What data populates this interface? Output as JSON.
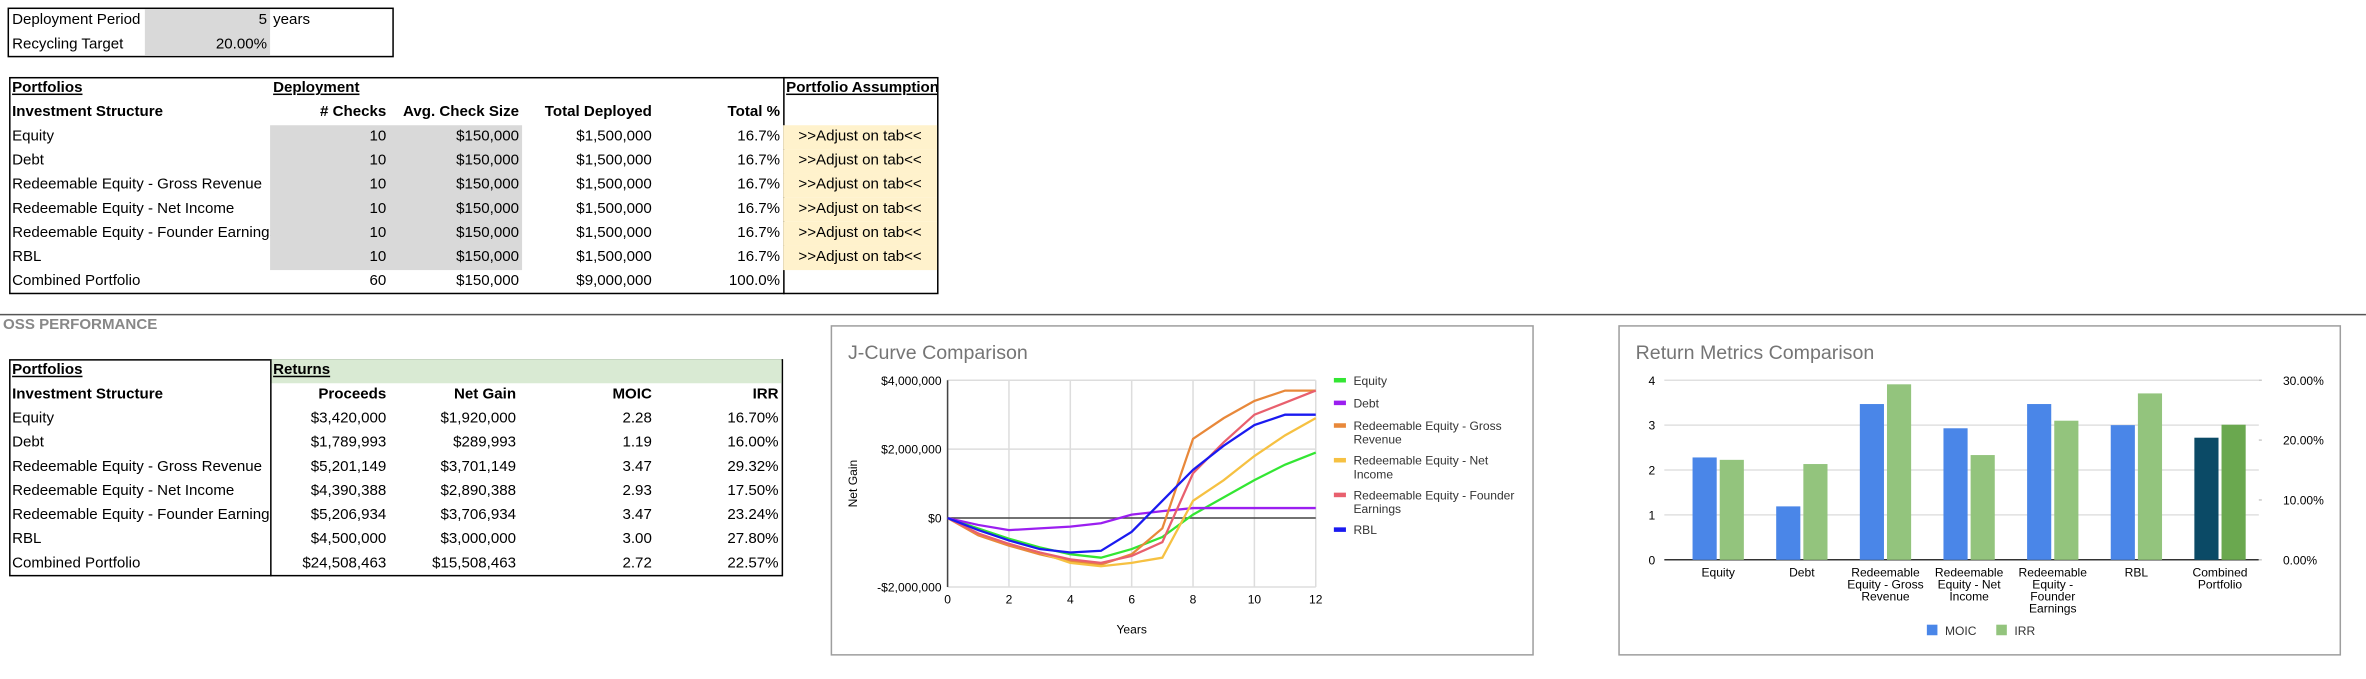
{
  "settings": {
    "rows": [
      [
        "Deployment Period",
        "5",
        "years"
      ],
      [
        "Recycling Target",
        "20.00%"
      ]
    ]
  },
  "deployment": {
    "header": [
      "Portfolios",
      "Deployment",
      "Portfolio Assumptions"
    ],
    "columns": [
      "Investment Structure",
      "# Checks",
      "Avg. Check Size",
      "Total Deployed",
      "Total %"
    ],
    "rows": [
      [
        "Equity",
        "10",
        "$150,000",
        "$1,500,000",
        "16.7%",
        ">>Adjust on tab<<"
      ],
      [
        "Debt",
        "10",
        "$150,000",
        "$1,500,000",
        "16.7%",
        ">>Adjust on tab<<"
      ],
      [
        "Redeemable Equity - Gross Revenue",
        "10",
        "$150,000",
        "$1,500,000",
        "16.7%",
        ">>Adjust on tab<<"
      ],
      [
        "Redeemable Equity - Net Income",
        "10",
        "$150,000",
        "$1,500,000",
        "16.7%",
        ">>Adjust on tab<<"
      ],
      [
        "Redeemable Equity - Founder Earnings",
        "10",
        "$150,000",
        "$1,500,000",
        "16.7%",
        ">>Adjust on tab<<"
      ],
      [
        "RBL",
        "10",
        "$150,000",
        "$1,500,000",
        "16.7%",
        ">>Adjust on tab<<"
      ],
      [
        "Combined Portfolio",
        "60",
        "$150,000",
        "$9,000,000",
        "100.0%"
      ]
    ]
  },
  "section_title": "OSS PERFORMANCE",
  "returns": {
    "header": [
      "Portfolios",
      "Returns"
    ],
    "columns": [
      "Investment Structure",
      "Proceeds",
      "Net Gain",
      "MOIC",
      "IRR"
    ],
    "rows": [
      [
        "Equity",
        "$3,420,000",
        "$1,920,000",
        "2.28",
        "16.70%"
      ],
      [
        "Debt",
        "$1,789,993",
        "$289,993",
        "1.19",
        "16.00%"
      ],
      [
        "Redeemable Equity - Gross Revenue",
        "$5,201,149",
        "$3,701,149",
        "3.47",
        "29.32%"
      ],
      [
        "Redeemable Equity - Net Income",
        "$4,390,388",
        "$2,890,388",
        "2.93",
        "17.50%"
      ],
      [
        "Redeemable Equity - Founder Earnings",
        "$5,206,934",
        "$3,706,934",
        "3.47",
        "23.24%"
      ],
      [
        "RBL",
        "$4,500,000",
        "$3,000,000",
        "3.00",
        "27.80%"
      ],
      [
        "Combined Portfolio",
        "$24,508,463",
        "$15,508,463",
        "2.72",
        "22.57%"
      ]
    ]
  },
  "chart_data": [
    {
      "type": "line",
      "title": "J-Curve Comparison",
      "x_label": "Years",
      "y_label": "Net Gain",
      "x": [
        0,
        1,
        2,
        3,
        4,
        5,
        6,
        7,
        8,
        9,
        10,
        11,
        12
      ],
      "xlim": [
        0,
        12
      ],
      "xticks": [
        0,
        2,
        4,
        6,
        8,
        10,
        12
      ],
      "ylim": [
        -2000000,
        4000000
      ],
      "yticks": [
        {
          "value": -2000000,
          "label": "-$2,000,000"
        },
        {
          "value": 0,
          "label": "$0"
        },
        {
          "value": 2000000,
          "label": "$2,000,000"
        },
        {
          "value": 4000000,
          "label": "$4,000,000"
        }
      ],
      "grid": true,
      "legend": "right",
      "series": [
        {
          "name": "Equity",
          "color": "#33e633",
          "values": [
            0,
            -300000,
            -600000,
            -850000,
            -1050000,
            -1150000,
            -900000,
            -550000,
            100000,
            600000,
            1100000,
            1550000,
            1900000
          ]
        },
        {
          "name": "Debt",
          "color": "#9b1ff0",
          "values": [
            0,
            -200000,
            -350000,
            -300000,
            -250000,
            -150000,
            100000,
            200000,
            290000,
            290000,
            290000,
            290000,
            290000
          ]
        },
        {
          "name": "Redeemable Equity - Gross Revenue",
          "color": "#e8883a",
          "values": [
            0,
            -500000,
            -800000,
            -1050000,
            -1250000,
            -1350000,
            -1050000,
            -300000,
            2300000,
            2900000,
            3400000,
            3700000,
            3700000
          ]
        },
        {
          "name": "Redeemable Equity - Net Income",
          "color": "#f6c142",
          "values": [
            0,
            -450000,
            -750000,
            -1000000,
            -1300000,
            -1400000,
            -1300000,
            -1150000,
            500000,
            1100000,
            1800000,
            2400000,
            2900000
          ]
        },
        {
          "name": "Redeemable Equity - Founder Earnings",
          "color": "#e8606e",
          "values": [
            0,
            -450000,
            -750000,
            -1000000,
            -1200000,
            -1300000,
            -1100000,
            -700000,
            1300000,
            2200000,
            3000000,
            3350000,
            3700000
          ]
        },
        {
          "name": "RBL",
          "color": "#1a1af0",
          "values": [
            0,
            -350000,
            -650000,
            -900000,
            -1000000,
            -950000,
            -400000,
            500000,
            1400000,
            2100000,
            2700000,
            3000000,
            3000000
          ]
        }
      ]
    },
    {
      "type": "bar",
      "title": "Return Metrics Comparison",
      "categories": [
        "Equity",
        "Debt",
        "Redeemable Equity - Gross Revenue",
        "Redeemable Equity - Net Income",
        "Redeemable Equity - Founder Earnings",
        "RBL",
        "Combined Portfolio"
      ],
      "ylim": [
        0,
        4
      ],
      "yticks": [
        0,
        1,
        2,
        3,
        4
      ],
      "y2lim": [
        0,
        30
      ],
      "y2ticks": [
        {
          "value": 0,
          "label": "0.00%"
        },
        {
          "value": 10,
          "label": "10.00%"
        },
        {
          "value": 20,
          "label": "20.00%"
        },
        {
          "value": 30,
          "label": "30.00%"
        }
      ],
      "grid": true,
      "legend": "bottom",
      "series": [
        {
          "name": "MOIC",
          "color": "#4a86e8",
          "colors": [
            "#4a86e8",
            "#4a86e8",
            "#4a86e8",
            "#4a86e8",
            "#4a86e8",
            "#4a86e8",
            "#0b4a66"
          ],
          "values": [
            2.28,
            1.19,
            3.47,
            2.93,
            3.47,
            3.0,
            2.72
          ]
        },
        {
          "name": "IRR",
          "color": "#93c47d",
          "colors": [
            "#93c47d",
            "#93c47d",
            "#93c47d",
            "#93c47d",
            "#93c47d",
            "#93c47d",
            "#6aa84f"
          ],
          "axis": "y2",
          "values": [
            16.7,
            16.0,
            29.32,
            17.5,
            23.24,
            27.8,
            22.57
          ]
        }
      ]
    }
  ]
}
